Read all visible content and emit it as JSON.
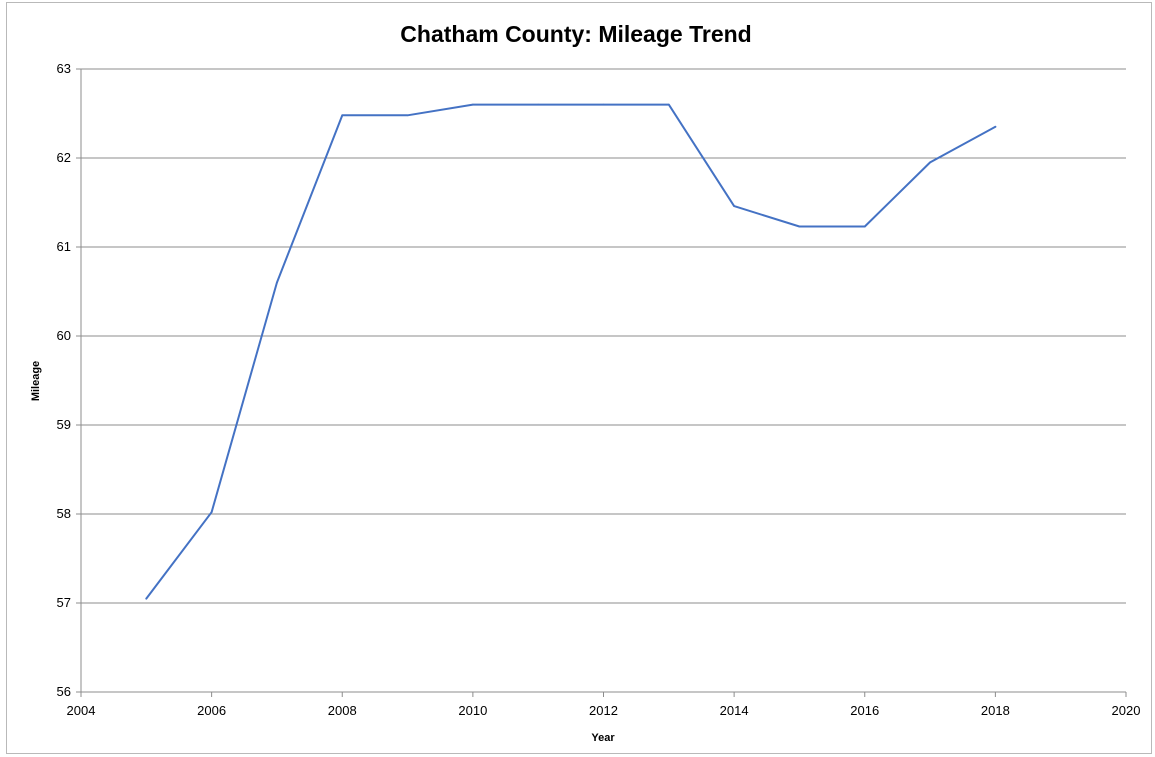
{
  "chart_data": {
    "type": "line",
    "title": "Chatham County: Mileage Trend",
    "xlabel": "Year",
    "ylabel": "Mileage",
    "xlim": [
      2004,
      2020
    ],
    "ylim": [
      56,
      63
    ],
    "xticks": [
      2004,
      2006,
      2008,
      2010,
      2012,
      2014,
      2016,
      2018,
      2020
    ],
    "yticks": [
      56,
      57,
      58,
      59,
      60,
      61,
      62,
      63
    ],
    "grid": "horizontal",
    "legend": "none",
    "series": [
      {
        "color": "#4472c4",
        "x": [
          2005,
          2006,
          2007,
          2008,
          2009,
          2010,
          2011,
          2012,
          2013,
          2014,
          2015,
          2016,
          2017,
          2018
        ],
        "y": [
          57.05,
          58.02,
          60.6,
          62.48,
          62.48,
          62.6,
          62.6,
          62.6,
          62.6,
          61.46,
          61.23,
          61.23,
          61.95,
          62.35
        ]
      }
    ]
  }
}
